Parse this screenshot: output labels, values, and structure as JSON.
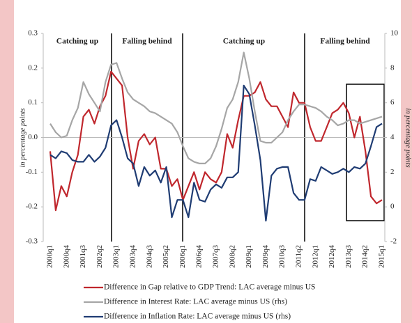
{
  "chart_data": {
    "type": "line",
    "categories": [
      "2000q1",
      null,
      null,
      "2000q4",
      null,
      null,
      "2001q3",
      null,
      null,
      "2002q2",
      null,
      null,
      "2003q1",
      null,
      null,
      "2003q4",
      null,
      null,
      "2004q3",
      null,
      null,
      "2005q2",
      null,
      null,
      "2006q1",
      null,
      null,
      "2006q4",
      null,
      null,
      "2007q3",
      null,
      null,
      "2008q2",
      null,
      null,
      "2009q1",
      null,
      null,
      "2009q4",
      null,
      null,
      "2010q3",
      null,
      null,
      "2011q2",
      null,
      null,
      "2012q1",
      null,
      null,
      "2012q4",
      null,
      null,
      "2013q3",
      null,
      null,
      "2014q2",
      null,
      null,
      "2015q1"
    ],
    "ylabel": "in percentage points",
    "y2label": "in percentage points",
    "ylim": [
      -0.3,
      0.3
    ],
    "yticks": [
      -0.3,
      -0.2,
      -0.1,
      {
        "value": 0,
        "label": "0.0"
      },
      0.1,
      0.2,
      0.3
    ],
    "y2lim": [
      -2,
      10
    ],
    "y2ticks": [
      -2,
      0,
      2,
      4,
      6,
      8,
      10
    ],
    "annotations": [
      "Catching up",
      "Falling behind",
      "Catching up",
      "Falling behind"
    ],
    "series": [
      {
        "name": "Difference in Gap relative to GDP Trend: LAC average minus US",
        "color": "#c0272d",
        "values": [
          -0.04,
          -0.21,
          -0.14,
          -0.17,
          -0.1,
          -0.05,
          0.06,
          0.08,
          0.04,
          0.09,
          0.12,
          0.19,
          0.17,
          0.15,
          0.0,
          -0.09,
          -0.01,
          0.01,
          -0.02,
          0.0,
          -0.09,
          -0.09,
          -0.14,
          -0.12,
          -0.18,
          -0.14,
          -0.1,
          -0.15,
          -0.1,
          -0.12,
          -0.13,
          -0.1,
          0.01,
          -0.03,
          0.05,
          0.12,
          0.12,
          0.13,
          0.16,
          0.11,
          0.09,
          0.09,
          0.06,
          0.03,
          0.13,
          0.1,
          0.1,
          0.03,
          -0.01,
          -0.01,
          0.03,
          0.07,
          0.08,
          0.1,
          0.07,
          0.0,
          0.06,
          -0.04,
          -0.17,
          -0.19,
          -0.18
        ]
      },
      {
        "name": "Difference in Interest Rate: LAC average minus US (rhs)",
        "color": "#a6a6a6",
        "axis": "y2",
        "values": [
          4.8,
          4.3,
          4.0,
          4.1,
          5.0,
          5.7,
          7.2,
          6.5,
          6.0,
          5.5,
          7.2,
          8.2,
          8.3,
          7.4,
          6.6,
          6.2,
          6.0,
          5.8,
          5.5,
          5.4,
          5.2,
          5.0,
          4.8,
          4.3,
          3.5,
          2.8,
          2.6,
          2.5,
          2.5,
          2.8,
          3.5,
          4.5,
          5.7,
          6.2,
          7.2,
          8.9,
          7.4,
          5.5,
          3.8,
          3.7,
          3.7,
          4.0,
          4.3,
          5.0,
          5.5,
          5.9,
          5.9,
          5.8,
          5.7,
          5.5,
          5.2,
          5.0,
          4.7,
          4.8,
          5.0,
          5.0,
          4.8,
          4.9,
          5.0,
          5.1,
          5.2
        ]
      },
      {
        "name": "Difference in Inflation Rate: LAC average minus US (rhs)",
        "color": "#1f3c73",
        "axis": "y2",
        "values": [
          3.0,
          2.8,
          3.2,
          3.1,
          2.7,
          2.6,
          2.6,
          3.0,
          2.6,
          2.9,
          3.4,
          4.7,
          5.0,
          4.0,
          2.8,
          2.5,
          1.2,
          2.3,
          1.8,
          2.1,
          1.4,
          2.3,
          -0.6,
          0.4,
          0.4,
          -0.6,
          1.4,
          0.4,
          0.3,
          1.0,
          1.3,
          1.1,
          1.7,
          1.7,
          2.0,
          7.0,
          6.5,
          4.7,
          2.7,
          -0.8,
          1.8,
          2.2,
          2.3,
          2.3,
          0.8,
          0.4,
          0.4,
          1.6,
          1.5,
          2.3,
          2.1,
          1.9,
          2.0,
          2.2,
          2.0,
          2.3,
          2.2,
          2.5,
          3.5,
          4.6,
          4.8
        ]
      }
    ]
  }
}
